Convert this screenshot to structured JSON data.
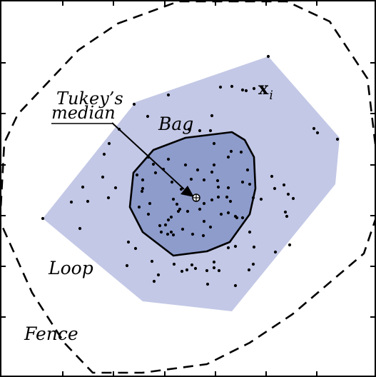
{
  "labels": {
    "tukey_line1": "Tukey’s",
    "tukey_line2": "median",
    "bag": "Bag",
    "loop": "Loop",
    "fence": "Fence",
    "xi_main": "x",
    "xi_sub": "i"
  },
  "colors": {
    "loop_fill": "#c3c8e6",
    "bag_fill": "#8e9ccc",
    "outline": "#000000",
    "points": "#000000"
  }
}
